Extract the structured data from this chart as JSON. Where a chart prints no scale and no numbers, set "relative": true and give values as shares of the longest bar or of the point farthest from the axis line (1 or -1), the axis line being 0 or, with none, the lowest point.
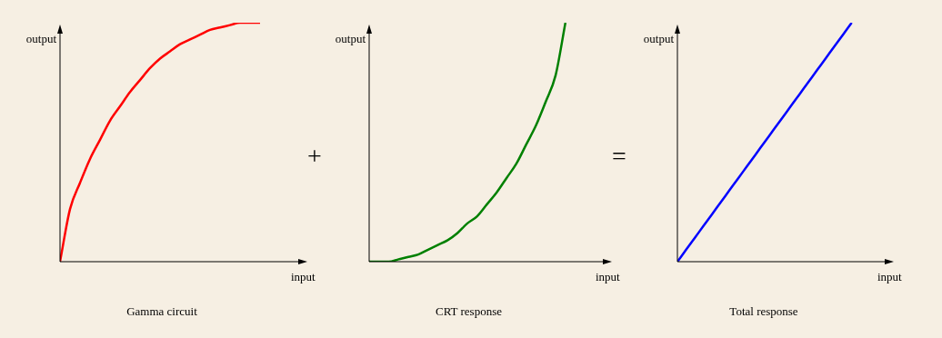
{
  "chart_data": [
    {
      "type": "line",
      "title": "Gamma circuit",
      "xlabel": "input",
      "ylabel": "output",
      "relative": true,
      "annotations": [
        "+"
      ],
      "categories": [
        null,
        null,
        null,
        null,
        null,
        null,
        null,
        null,
        null,
        null,
        null,
        null,
        null,
        null,
        null,
        null,
        null,
        null,
        null,
        null,
        null,
        null,
        null,
        null,
        null
      ],
      "series": [
        {
          "color": "#ff0000",
          "values": [
            0,
            0.22,
            0.33,
            0.43,
            0.51,
            0.59,
            0.65,
            0.71,
            0.76,
            0.81,
            0.85,
            0.88,
            0.91,
            0.93,
            0.95,
            0.97,
            0.98,
            0.99,
            1,
            1,
            1,
            null,
            null,
            null,
            null
          ]
        }
      ]
    },
    {
      "type": "line",
      "title": "CRT response",
      "xlabel": "input",
      "ylabel": "output",
      "relative": true,
      "annotations": [
        "="
      ],
      "categories": [
        null,
        null,
        null,
        null,
        null,
        null,
        null,
        null,
        null,
        null,
        null,
        null,
        null,
        null,
        null,
        null,
        null,
        null,
        null,
        null,
        null,
        null,
        null,
        null,
        null
      ],
      "series": [
        {
          "color": "#008000",
          "values": [
            0,
            0,
            0,
            0.01,
            0.02,
            0.03,
            0.05,
            0.07,
            0.09,
            0.12,
            0.16,
            0.19,
            0.24,
            0.29,
            0.35,
            0.41,
            0.49,
            0.57,
            0.67,
            0.78,
            1,
            null,
            null,
            null,
            null
          ]
        }
      ]
    },
    {
      "type": "line",
      "title": "Total response",
      "xlabel": "input",
      "ylabel": "output",
      "relative": true,
      "categories": [
        null,
        null,
        null,
        null,
        null,
        null,
        null,
        null,
        null,
        null,
        null,
        null,
        null,
        null,
        null,
        null,
        null,
        null,
        null,
        null,
        null,
        null,
        null,
        null,
        null
      ],
      "series": [
        {
          "color": "#0000ff",
          "values": [
            0,
            0.05,
            0.1,
            0.15,
            0.2,
            0.25,
            0.3,
            0.35,
            0.4,
            0.45,
            0.5,
            0.55,
            0.6,
            0.65,
            0.7,
            0.75,
            0.8,
            0.85,
            0.9,
            0.95,
            1,
            null,
            null,
            null,
            null
          ]
        }
      ]
    }
  ]
}
